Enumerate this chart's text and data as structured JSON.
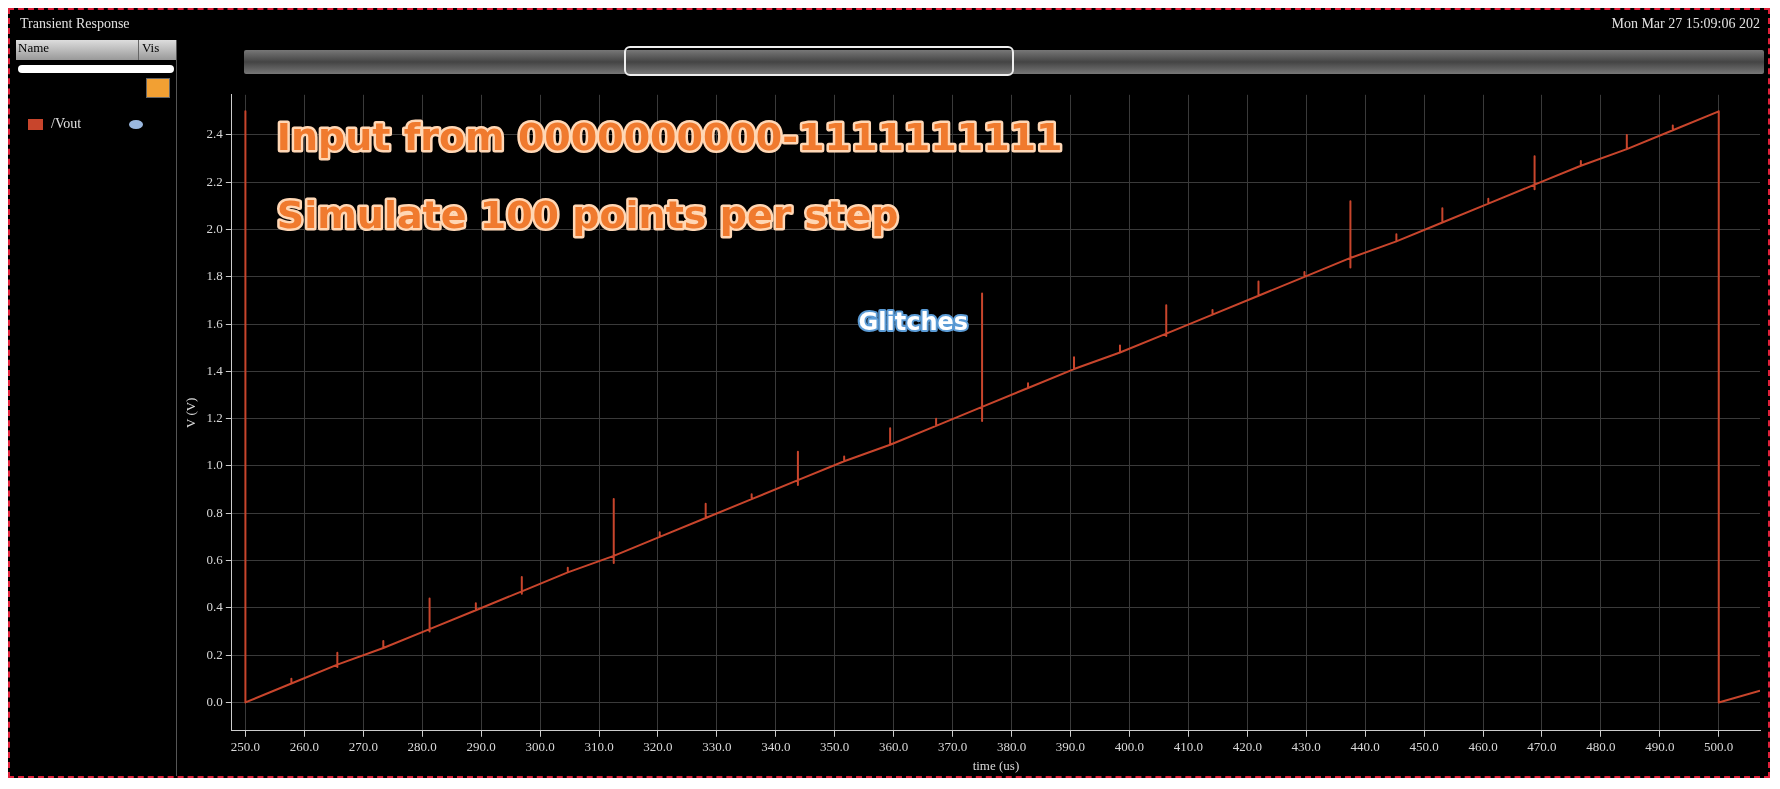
{
  "chart_data": {
    "type": "line",
    "title": "Transient Response",
    "xlabel": "time (us)",
    "ylabel": "V (V)",
    "annotations": [
      "Mon Mar 27 15:09:06 202",
      "Name",
      "Vis",
      "Input from 0000000000-1111111111",
      "Simulate 100 points per step",
      {
        "text": "Glitches",
        "x": 375,
        "y": 1.6
      }
    ],
    "xlim": [
      247.7,
      507
    ],
    "ylim": [
      -0.12,
      2.57
    ],
    "xticks": [
      {
        "value": 250,
        "label": "250.0"
      },
      {
        "value": 260,
        "label": "260.0"
      },
      {
        "value": 270,
        "label": "270.0"
      },
      {
        "value": 280,
        "label": "280.0"
      },
      {
        "value": 290,
        "label": "290.0"
      },
      {
        "value": 300,
        "label": "300.0"
      },
      {
        "value": 310,
        "label": "310.0"
      },
      {
        "value": 320,
        "label": "320.0"
      },
      {
        "value": 330,
        "label": "330.0"
      },
      {
        "value": 340,
        "label": "340.0"
      },
      {
        "value": 350,
        "label": "350.0"
      },
      {
        "value": 360,
        "label": "360.0"
      },
      {
        "value": 370,
        "label": "370.0"
      },
      {
        "value": 380,
        "label": "380.0"
      },
      {
        "value": 390,
        "label": "390.0"
      },
      {
        "value": 400,
        "label": "400.0"
      },
      {
        "value": 410,
        "label": "410.0"
      },
      {
        "value": 420,
        "label": "420.0"
      },
      {
        "value": 430,
        "label": "430.0"
      },
      {
        "value": 440,
        "label": "440.0"
      },
      {
        "value": 450,
        "label": "450.0"
      },
      {
        "value": 460,
        "label": "460.0"
      },
      {
        "value": 470,
        "label": "470.0"
      },
      {
        "value": 480,
        "label": "480.0"
      },
      {
        "value": 490,
        "label": "490.0"
      },
      {
        "value": 500,
        "label": "500.0"
      }
    ],
    "yticks": [
      {
        "value": 0,
        "label": "0.0"
      },
      {
        "value": 0.2,
        "label": "0.2"
      },
      {
        "value": 0.4,
        "label": "0.4"
      },
      {
        "value": 0.6,
        "label": "0.6"
      },
      {
        "value": 0.8,
        "label": "0.8"
      },
      {
        "value": 1,
        "label": "1.0"
      },
      {
        "value": 1.2,
        "label": "1.2"
      },
      {
        "value": 1.4,
        "label": "1.4"
      },
      {
        "value": 1.6,
        "label": "1.6"
      },
      {
        "value": 1.8,
        "label": "1.8"
      },
      {
        "value": 2,
        "label": "2.0"
      },
      {
        "value": 2.2,
        "label": "2.2"
      },
      {
        "value": 2.4,
        "label": "2.4"
      }
    ],
    "grid": true,
    "legend": "left",
    "marker": "none",
    "line_style": "solid",
    "series": [
      {
        "name": "/Vout",
        "color": "#c8452c",
        "x": [
          250,
          250,
          257.8,
          257.8,
          257.8,
          265.6,
          265.6,
          265.6,
          265.6,
          273.4,
          273.4,
          273.4,
          281.25,
          281.25,
          281.25,
          281.25,
          289.1,
          289.1,
          289.1,
          296.9,
          296.9,
          296.9,
          296.9,
          304.7,
          304.7,
          304.7,
          312.5,
          312.5,
          312.5,
          312.5,
          320.3,
          320.3,
          320.3,
          328.1,
          328.1,
          328.1,
          335.9,
          335.9,
          335.9,
          343.75,
          343.75,
          343.75,
          343.75,
          351.6,
          351.6,
          351.6,
          359.4,
          359.4,
          359.4,
          367.2,
          367.2,
          367.2,
          375,
          375,
          375,
          375,
          382.8,
          382.8,
          382.8,
          390.6,
          390.6,
          390.6,
          398.4,
          398.4,
          398.4,
          406.25,
          406.25,
          406.25,
          406.25,
          414.1,
          414.1,
          414.1,
          421.9,
          421.9,
          421.9,
          429.7,
          429.7,
          429.7,
          437.5,
          437.5,
          437.5,
          437.5,
          445.3,
          445.3,
          445.3,
          453.1,
          453.1,
          453.1,
          460.9,
          460.9,
          460.9,
          468.75,
          468.75,
          468.75,
          468.75,
          476.6,
          476.6,
          476.6,
          484.4,
          484.4,
          484.4,
          492.2,
          492.2,
          492.2,
          500,
          500,
          507
        ],
        "values": [
          2.5,
          0,
          0.08,
          0.1,
          0.08,
          0.16,
          0.21,
          0.15,
          0.16,
          0.23,
          0.26,
          0.23,
          0.31,
          0.44,
          0.3,
          0.31,
          0.39,
          0.42,
          0.39,
          0.47,
          0.53,
          0.46,
          0.47,
          0.55,
          0.57,
          0.55,
          0.62,
          0.86,
          0.59,
          0.62,
          0.7,
          0.72,
          0.7,
          0.78,
          0.84,
          0.78,
          0.86,
          0.88,
          0.86,
          0.94,
          1.06,
          0.92,
          0.94,
          1.02,
          1.04,
          1.02,
          1.09,
          1.16,
          1.09,
          1.17,
          1.2,
          1.17,
          1.25,
          1.73,
          1.19,
          1.25,
          1.33,
          1.35,
          1.33,
          1.41,
          1.46,
          1.41,
          1.48,
          1.51,
          1.48,
          1.56,
          1.68,
          1.55,
          1.56,
          1.64,
          1.66,
          1.64,
          1.72,
          1.78,
          1.72,
          1.8,
          1.82,
          1.8,
          1.88,
          2.12,
          1.84,
          1.88,
          1.95,
          1.98,
          1.95,
          2.03,
          2.09,
          2.03,
          2.11,
          2.13,
          2.11,
          2.19,
          2.31,
          2.17,
          2.19,
          2.27,
          2.29,
          2.27,
          2.34,
          2.4,
          2.34,
          2.42,
          2.44,
          2.42,
          2.5,
          0,
          0.05
        ]
      }
    ]
  }
}
